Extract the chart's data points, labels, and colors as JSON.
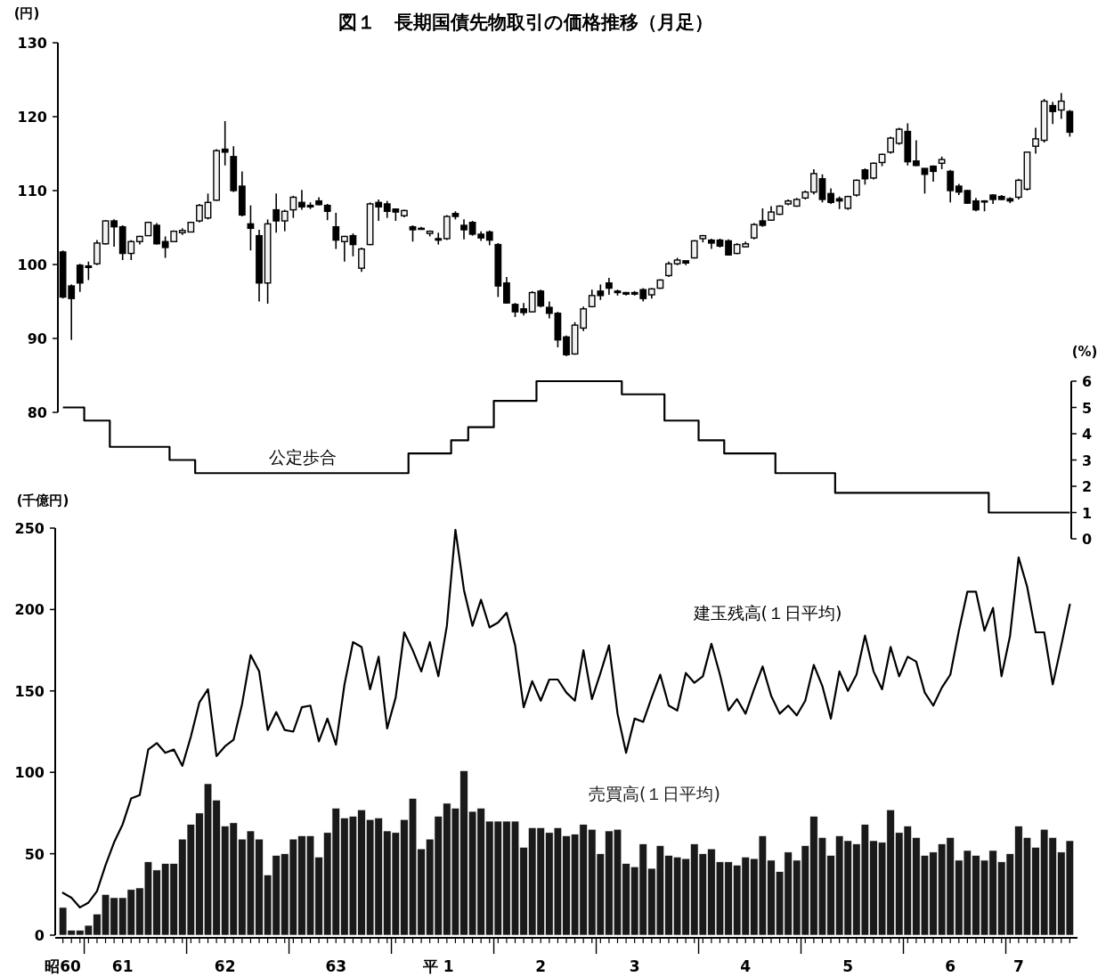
{
  "chart_data": [
    {
      "type": "candlestick",
      "title": "図１　長期国債先物取引の価格推移（月足）",
      "ylabel": "(円)",
      "tick_labels": "y",
      "categories": [
        null,
        null,
        null,
        null,
        null,
        null,
        null,
        null,
        null,
        null,
        null,
        null,
        null,
        null,
        null,
        null,
        null,
        null,
        null,
        null,
        null,
        null,
        null,
        null,
        null,
        null,
        null,
        null,
        null,
        null,
        null,
        null,
        null,
        null,
        null,
        null,
        null,
        null,
        null,
        null,
        null,
        null,
        null,
        null,
        null,
        null,
        null,
        null,
        null,
        null,
        null,
        null,
        null,
        null,
        null,
        null,
        null,
        null,
        null,
        null,
        null,
        null,
        null,
        null,
        null,
        null,
        null,
        null,
        null,
        null,
        null,
        null,
        null,
        null,
        null,
        null,
        null,
        null,
        null,
        null,
        null,
        null,
        null,
        null,
        null,
        null,
        null,
        null,
        null,
        null,
        null,
        null,
        null,
        null,
        null,
        null,
        null,
        null,
        null,
        null,
        null,
        null,
        null,
        null,
        null,
        null,
        null,
        null,
        null,
        null,
        null,
        null,
        null,
        null,
        null,
        null,
        null,
        null,
        null
      ],
      "ohlc": [
        [
          101.7,
          101.9,
          95.4,
          95.6
        ],
        [
          97.1,
          97.3,
          89.8,
          95.4
        ],
        [
          99.9,
          100.1,
          96.3,
          97.5
        ],
        [
          99.8,
          100.4,
          97.9,
          99.6
        ],
        [
          100.1,
          103.3,
          99.9,
          102.9
        ],
        [
          102.8,
          106,
          102.7,
          105.9
        ],
        [
          105.9,
          106.1,
          102.4,
          105.1
        ],
        [
          105.1,
          105.3,
          100.6,
          101.5
        ],
        [
          101.5,
          103.3,
          100.6,
          103.1
        ],
        [
          103.1,
          103.9,
          102.7,
          103.8
        ],
        [
          103.9,
          105.8,
          103.9,
          105.7
        ],
        [
          105.3,
          105.6,
          102.7,
          102.8
        ],
        [
          103.1,
          103.8,
          100.9,
          102.3
        ],
        [
          103.1,
          104.6,
          103,
          104.5
        ],
        [
          104.3,
          104.9,
          104,
          104.6
        ],
        [
          104.4,
          105.8,
          104.4,
          105.7
        ],
        [
          105.9,
          108.2,
          105.7,
          108
        ],
        [
          106.3,
          109.6,
          106.1,
          108.4
        ],
        [
          108.7,
          115.6,
          108.6,
          115.4
        ],
        [
          115.6,
          119.4,
          113.4,
          115.2
        ],
        [
          114.6,
          116,
          109.8,
          110
        ],
        [
          110.6,
          112.6,
          106.5,
          106.7
        ],
        [
          105.5,
          108,
          101.9,
          104.9
        ],
        [
          103.9,
          104.7,
          95,
          97.5
        ],
        [
          97.5,
          106.1,
          94.7,
          105.5
        ],
        [
          107.4,
          109.6,
          104.3,
          105.9
        ],
        [
          105.9,
          107.4,
          104.5,
          107.2
        ],
        [
          107.4,
          109.3,
          106.3,
          109.1
        ],
        [
          108.4,
          110.1,
          107.4,
          107.8
        ],
        [
          108,
          108.4,
          107.5,
          107.8
        ],
        [
          108.6,
          109.1,
          108,
          108.1
        ],
        [
          108,
          108.2,
          106,
          107.2
        ],
        [
          105.1,
          107,
          102.1,
          103.3
        ],
        [
          103.1,
          103.9,
          100.4,
          103.8
        ],
        [
          103.9,
          104.2,
          101.1,
          102.7
        ],
        [
          99.5,
          102.3,
          99,
          102.1
        ],
        [
          102.7,
          108.4,
          102.6,
          108.2
        ],
        [
          108.4,
          108.8,
          105.9,
          107.8
        ],
        [
          108.2,
          108.6,
          106.3,
          107.2
        ],
        [
          107.5,
          107.6,
          105.9,
          107.1
        ],
        [
          106.6,
          107.4,
          106.4,
          107.3
        ],
        [
          105.1,
          105.3,
          103.1,
          104.7
        ],
        [
          104.9,
          105.1,
          104.7,
          104.8
        ],
        [
          104.2,
          104.6,
          103.8,
          104.5
        ],
        [
          103.5,
          104.3,
          102.7,
          103.3
        ],
        [
          103.5,
          106.7,
          103.3,
          106.5
        ],
        [
          106.9,
          107.2,
          106.1,
          106.5
        ],
        [
          105.3,
          106.1,
          103.4,
          104.7
        ],
        [
          105.7,
          105.9,
          103.9,
          104.1
        ],
        [
          104.1,
          104.5,
          103.2,
          103.6
        ],
        [
          104.4,
          104.6,
          102.6,
          103.3
        ],
        [
          102.7,
          102.9,
          95.6,
          97.1
        ],
        [
          97.5,
          98.3,
          94.7,
          94.8
        ],
        [
          94.6,
          94.8,
          92.9,
          93.6
        ],
        [
          94,
          94.8,
          93.1,
          93.5
        ],
        [
          93.6,
          96.4,
          93.5,
          96.2
        ],
        [
          96.4,
          96.6,
          94.2,
          94.4
        ],
        [
          94.2,
          95,
          92.7,
          93.4
        ],
        [
          93.4,
          93.6,
          88.8,
          89.8
        ],
        [
          90.2,
          90.4,
          87.6,
          87.8
        ],
        [
          87.9,
          92.2,
          87.8,
          91.8
        ],
        [
          91.4,
          94.3,
          91,
          94
        ],
        [
          94.3,
          96.6,
          94.2,
          95.8
        ],
        [
          96.4,
          97.3,
          95.2,
          95.8
        ],
        [
          97.5,
          98.2,
          95.9,
          96.8
        ],
        [
          96.4,
          96.6,
          95.8,
          96.2
        ],
        [
          96.2,
          96.3,
          95.8,
          96
        ],
        [
          96.2,
          96.4,
          95.8,
          96
        ],
        [
          96.6,
          96.8,
          95,
          95.4
        ],
        [
          95.9,
          96.8,
          95.4,
          96.7
        ],
        [
          96.8,
          98,
          96.7,
          97.9
        ],
        [
          98.5,
          100.4,
          98.3,
          100.1
        ],
        [
          100.1,
          100.9,
          99.9,
          100.6
        ],
        [
          100.5,
          100.5,
          99.9,
          100.2
        ],
        [
          100.9,
          103.3,
          100.8,
          103.2
        ],
        [
          103.5,
          104,
          103,
          103.9
        ],
        [
          103.3,
          103.5,
          102.1,
          102.9
        ],
        [
          103.3,
          103.5,
          102.3,
          102.5
        ],
        [
          103.2,
          103.4,
          101.2,
          101.3
        ],
        [
          101.5,
          102.9,
          101.4,
          102.7
        ],
        [
          102.4,
          103.1,
          102.3,
          102.8
        ],
        [
          103.6,
          105.6,
          103.4,
          105.4
        ],
        [
          105.9,
          107.6,
          105.1,
          105.3
        ],
        [
          106,
          107.9,
          105.9,
          107.1
        ],
        [
          106.8,
          108,
          106.7,
          107.9
        ],
        [
          108.2,
          108.8,
          108,
          108.6
        ],
        [
          107.9,
          109,
          107.8,
          108.8
        ],
        [
          109,
          110,
          108.8,
          109.8
        ],
        [
          109.8,
          112.9,
          109.5,
          112.3
        ],
        [
          111.6,
          112.2,
          108.4,
          108.8
        ],
        [
          109.6,
          110.3,
          108.2,
          108.4
        ],
        [
          108.9,
          109.2,
          107.5,
          108.6
        ],
        [
          107.6,
          109.3,
          107.4,
          109.2
        ],
        [
          109.4,
          111.5,
          109.2,
          111.4
        ],
        [
          112.8,
          113,
          110.8,
          111.6
        ],
        [
          111.7,
          113.8,
          111.5,
          113.7
        ],
        [
          113.8,
          115,
          113.3,
          114.9
        ],
        [
          115.2,
          117.3,
          115,
          117.1
        ],
        [
          116.4,
          118.5,
          116.2,
          118.3
        ],
        [
          118,
          119.1,
          113.4,
          113.9
        ],
        [
          114,
          116.8,
          113.3,
          113.4
        ],
        [
          113,
          113,
          109.6,
          112.2
        ],
        [
          113.3,
          113.4,
          111.2,
          112.6
        ],
        [
          113.7,
          114.6,
          112.9,
          114.2
        ],
        [
          112.6,
          112.8,
          108.4,
          110
        ],
        [
          110.6,
          110.9,
          109.4,
          109.8
        ],
        [
          110,
          110.1,
          108.2,
          108.3
        ],
        [
          108.6,
          109,
          107.2,
          107.4
        ],
        [
          108.6,
          108.7,
          107.2,
          108.5
        ],
        [
          109.4,
          109.5,
          108.2,
          108.8
        ],
        [
          109.2,
          109.4,
          108.7,
          108.8
        ],
        [
          108.9,
          109.1,
          108.3,
          108.6
        ],
        [
          109.1,
          111.6,
          108.8,
          111.4
        ],
        [
          110.2,
          115.2,
          110,
          115.2
        ],
        [
          116,
          118.5,
          115,
          117
        ],
        [
          116.8,
          122.4,
          116.5,
          122.1
        ],
        [
          121.5,
          122,
          119,
          120.7
        ],
        [
          120.9,
          123.2,
          119.7,
          122.1
        ],
        [
          120.7,
          120.9,
          117.3,
          117.9
        ]
      ],
      "ylim": [
        80,
        130
      ],
      "yticks": [
        80,
        90,
        100,
        110,
        120,
        130
      ]
    },
    {
      "type": "step",
      "ylabel": "(%)",
      "tick_labels": "y",
      "categories": [
        null,
        null,
        null,
        null,
        null,
        null,
        null,
        null,
        null,
        null,
        null,
        null,
        null,
        null,
        null,
        null,
        null,
        null,
        null,
        null,
        null,
        null,
        null,
        null,
        null,
        null,
        null,
        null,
        null,
        null,
        null,
        null,
        null,
        null,
        null,
        null,
        null,
        null,
        null,
        null,
        null,
        null,
        null,
        null,
        null,
        null,
        null,
        null,
        null,
        null,
        null,
        null,
        null,
        null,
        null,
        null,
        null,
        null,
        null,
        null,
        null,
        null,
        null,
        null,
        null,
        null,
        null,
        null,
        null,
        null,
        null,
        null,
        null,
        null,
        null,
        null,
        null,
        null,
        null,
        null,
        null,
        null,
        null,
        null,
        null,
        null,
        null,
        null,
        null,
        null,
        null,
        null,
        null,
        null,
        null,
        null,
        null,
        null,
        null,
        null,
        null,
        null,
        null,
        null,
        null,
        null,
        null,
        null,
        null,
        null,
        null,
        null,
        null,
        null,
        null,
        null,
        null,
        null,
        null
      ],
      "series": [
        {
          "name": "公定歩合",
          "color": "#000000",
          "values": [
            5,
            5,
            5,
            4.5,
            4.5,
            4.5,
            3.5,
            3.5,
            3.5,
            3.5,
            3.5,
            3.5,
            3.5,
            3,
            3,
            3,
            2.5,
            2.5,
            2.5,
            2.5,
            2.5,
            2.5,
            2.5,
            2.5,
            2.5,
            2.5,
            2.5,
            2.5,
            2.5,
            2.5,
            2.5,
            2.5,
            2.5,
            2.5,
            2.5,
            2.5,
            2.5,
            2.5,
            2.5,
            2.5,
            2.5,
            3.25,
            3.25,
            3.25,
            3.25,
            3.25,
            3.75,
            3.75,
            4.25,
            4.25,
            4.25,
            5.25,
            5.25,
            5.25,
            5.25,
            5.25,
            6,
            6,
            6,
            6,
            6,
            6,
            6,
            6,
            6,
            6,
            5.5,
            5.5,
            5.5,
            5.5,
            5.5,
            4.5,
            4.5,
            4.5,
            4.5,
            3.75,
            3.75,
            3.75,
            3.25,
            3.25,
            3.25,
            3.25,
            3.25,
            3.25,
            2.5,
            2.5,
            2.5,
            2.5,
            2.5,
            2.5,
            2.5,
            1.75,
            1.75,
            1.75,
            1.75,
            1.75,
            1.75,
            1.75,
            1.75,
            1.75,
            1.75,
            1.75,
            1.75,
            1.75,
            1.75,
            1.75,
            1.75,
            1.75,
            1.75,
            1,
            1,
            1,
            1,
            1,
            1,
            1,
            1,
            1,
            1
          ]
        }
      ],
      "ylim": [
        0,
        6
      ],
      "yticks": [
        0,
        1,
        2,
        3,
        4,
        5,
        6
      ]
    },
    {
      "type": "bar",
      "ylabel": "(千億円)",
      "categories": [
        "昭60",
        null,
        null,
        null,
        null,
        null,
        null,
        "61",
        null,
        null,
        null,
        null,
        null,
        null,
        null,
        null,
        null,
        null,
        null,
        "62",
        null,
        null,
        null,
        null,
        null,
        null,
        null,
        null,
        null,
        null,
        null,
        null,
        "63",
        null,
        null,
        null,
        null,
        null,
        null,
        null,
        null,
        null,
        null,
        null,
        "平 1",
        null,
        null,
        null,
        null,
        null,
        null,
        null,
        null,
        null,
        null,
        null,
        "2",
        null,
        null,
        null,
        null,
        null,
        null,
        null,
        null,
        null,
        null,
        "3",
        null,
        null,
        null,
        null,
        null,
        null,
        null,
        null,
        null,
        null,
        null,
        null,
        "4",
        null,
        null,
        null,
        null,
        null,
        null,
        null,
        null,
        null,
        null,
        null,
        "5",
        null,
        null,
        null,
        null,
        null,
        null,
        null,
        null,
        null,
        null,
        null,
        "6",
        null,
        null,
        null,
        null,
        null,
        null,
        null,
        "7",
        null,
        null,
        null,
        null,
        null,
        null
      ],
      "series": [
        {
          "name": "売買高(１日平均)",
          "type": "bar",
          "color": "#1a1a1a",
          "values": [
            17,
            3,
            3,
            6,
            13,
            25,
            23,
            23,
            28,
            29,
            45,
            40,
            44,
            44,
            59,
            68,
            75,
            93,
            83,
            67,
            69,
            59,
            64,
            59,
            37,
            49,
            50,
            59,
            61,
            61,
            48,
            63,
            78,
            72,
            73,
            77,
            71,
            72,
            64,
            63,
            71,
            84,
            53,
            59,
            73,
            81,
            78,
            101,
            76,
            78,
            70,
            70,
            70,
            70,
            54,
            66,
            66,
            63,
            66,
            61,
            62,
            68,
            65,
            50,
            64,
            65,
            44,
            42,
            56,
            41,
            55,
            49,
            48,
            47,
            56,
            50,
            53,
            45,
            45,
            43,
            48,
            47,
            61,
            46,
            39,
            51,
            46,
            55,
            73,
            60,
            49,
            61,
            58,
            56,
            68,
            58,
            57,
            77,
            63,
            67,
            60,
            49,
            51,
            56,
            60,
            46,
            52,
            49,
            46,
            52,
            45,
            50,
            67,
            60,
            54,
            65,
            60,
            51,
            58
          ]
        },
        {
          "name": "建玉残高(１日平均)",
          "type": "line",
          "color": "#000000",
          "values": [
            26,
            23,
            17,
            20,
            27,
            43,
            57,
            68,
            84,
            86,
            114,
            118,
            112,
            114,
            104,
            122,
            143,
            151,
            110,
            116,
            120,
            142,
            172,
            162,
            126,
            137,
            126,
            125,
            140,
            141,
            119,
            133,
            117,
            154,
            180,
            177,
            151,
            171,
            127,
            146,
            186,
            175,
            162,
            180,
            159,
            190,
            249,
            212,
            190,
            206,
            189,
            192,
            198,
            178,
            140,
            156,
            144,
            157,
            157,
            149,
            144,
            175,
            145,
            161,
            178,
            136,
            112,
            133,
            131,
            146,
            160,
            141,
            138,
            161,
            155,
            159,
            179,
            160,
            138,
            145,
            136,
            151,
            165,
            147,
            136,
            141,
            135,
            144,
            166,
            153,
            133,
            162,
            150,
            160,
            184,
            162,
            151,
            177,
            159,
            171,
            168,
            149,
            141,
            152,
            160,
            187,
            211,
            211,
            187,
            201,
            159,
            184,
            232,
            214,
            186,
            186,
            154,
            178,
            203
          ]
        }
      ],
      "ylim": [
        0,
        250
      ],
      "yticks": [
        0,
        50,
        100,
        150,
        200,
        250
      ]
    }
  ]
}
